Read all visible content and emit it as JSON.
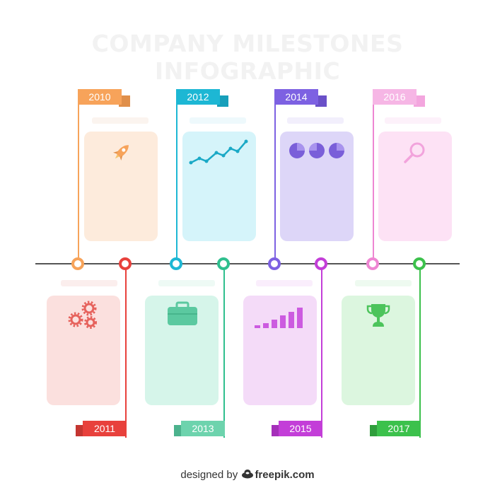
{
  "title": "COMPANY MILESTONES INFOGRAPHIC",
  "milestones": [
    {
      "year": "2010",
      "color": "#f7a35a",
      "card_color": "#fdebdc",
      "icon": "rocket-icon"
    },
    {
      "year": "2011",
      "color": "#e8413c",
      "card_color": "#fbe0de",
      "icon": "gears-icon"
    },
    {
      "year": "2012",
      "color": "#1db7d4",
      "card_color": "#d5f4fa",
      "icon": "line-chart-icon"
    },
    {
      "year": "2013",
      "color": "#2fbf8e",
      "card_color": "#d6f5ea",
      "icon": "briefcase-icon"
    },
    {
      "year": "2014",
      "color": "#7d61e2",
      "card_color": "#ddd6f8",
      "icon": "pie-charts-icon"
    },
    {
      "year": "2015",
      "color": "#c33ed8",
      "card_color": "#f4dbf8",
      "icon": "bar-chart-icon"
    },
    {
      "year": "2016",
      "color": "#ee86d2",
      "card_color": "#fde2f5",
      "icon": "magnifier-icon"
    },
    {
      "year": "2017",
      "color": "#3cc14c",
      "card_color": "#dcf6df",
      "icon": "trophy-icon"
    }
  ],
  "footer": {
    "prefix": "designed by",
    "brand": "freepik.com"
  }
}
